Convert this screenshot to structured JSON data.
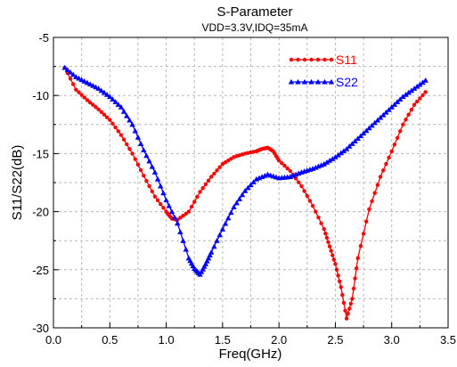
{
  "chart_data": {
    "type": "line",
    "title": "S-Parameter",
    "subtitle": "VDD=3.3V,IDQ=35mA",
    "xlabel": "Freq(GHz)",
    "ylabel": "S11/S22(dB)",
    "xlim": [
      0.0,
      3.5
    ],
    "ylim": [
      -30,
      -5
    ],
    "xticks": [
      0.0,
      0.5,
      1.0,
      1.5,
      2.0,
      2.5,
      3.0,
      3.5
    ],
    "yticks": [
      -30,
      -25,
      -20,
      -15,
      -10,
      -5
    ],
    "x_tick_labels": [
      "0.0",
      "0.5",
      "1.0",
      "1.5",
      "2.0",
      "2.5",
      "3.0",
      "3.5"
    ],
    "y_tick_labels": [
      "-30",
      "-25",
      "-20",
      "-15",
      "-10",
      "-5"
    ],
    "grid": true,
    "legend_position": "top-right",
    "series": [
      {
        "name": "S11",
        "color": "#ff0000",
        "marker": "circle",
        "x": [
          0.1,
          0.2,
          0.3,
          0.4,
          0.5,
          0.6,
          0.7,
          0.8,
          0.9,
          1.0,
          1.05,
          1.1,
          1.2,
          1.3,
          1.4,
          1.5,
          1.6,
          1.7,
          1.8,
          1.85,
          1.9,
          1.95,
          2.0,
          2.1,
          2.2,
          2.3,
          2.4,
          2.45,
          2.5,
          2.55,
          2.6,
          2.65,
          2.7,
          2.8,
          2.9,
          3.0,
          3.1,
          3.2,
          3.3
        ],
        "y": [
          -7.6,
          -9.5,
          -10.4,
          -11.2,
          -12.1,
          -13.4,
          -15.0,
          -16.9,
          -18.7,
          -20.0,
          -20.6,
          -20.7,
          -20.0,
          -18.3,
          -17.0,
          -15.9,
          -15.3,
          -15.0,
          -14.8,
          -14.6,
          -14.5,
          -14.8,
          -15.6,
          -16.5,
          -17.8,
          -19.5,
          -21.5,
          -23.0,
          -24.5,
          -26.5,
          -29.2,
          -27.5,
          -24.0,
          -19.8,
          -17.0,
          -14.8,
          -12.5,
          -10.8,
          -9.7
        ]
      },
      {
        "name": "S22",
        "color": "#0000ff",
        "marker": "triangle",
        "x": [
          0.1,
          0.2,
          0.3,
          0.4,
          0.5,
          0.6,
          0.7,
          0.8,
          0.9,
          1.0,
          1.1,
          1.2,
          1.25,
          1.3,
          1.35,
          1.4,
          1.5,
          1.6,
          1.7,
          1.8,
          1.9,
          2.0,
          2.1,
          2.2,
          2.3,
          2.4,
          2.5,
          2.6,
          2.7,
          2.8,
          2.9,
          3.0,
          3.1,
          3.2,
          3.3
        ],
        "y": [
          -7.6,
          -8.4,
          -8.9,
          -9.4,
          -10.1,
          -11.0,
          -12.5,
          -14.7,
          -16.6,
          -19.0,
          -21.0,
          -24.0,
          -24.9,
          -25.4,
          -24.5,
          -23.5,
          -21.5,
          -19.6,
          -18.2,
          -17.2,
          -16.8,
          -17.1,
          -17.0,
          -16.6,
          -16.3,
          -15.9,
          -15.3,
          -14.6,
          -13.7,
          -12.8,
          -11.9,
          -11.0,
          -10.1,
          -9.4,
          -8.7
        ]
      }
    ]
  }
}
